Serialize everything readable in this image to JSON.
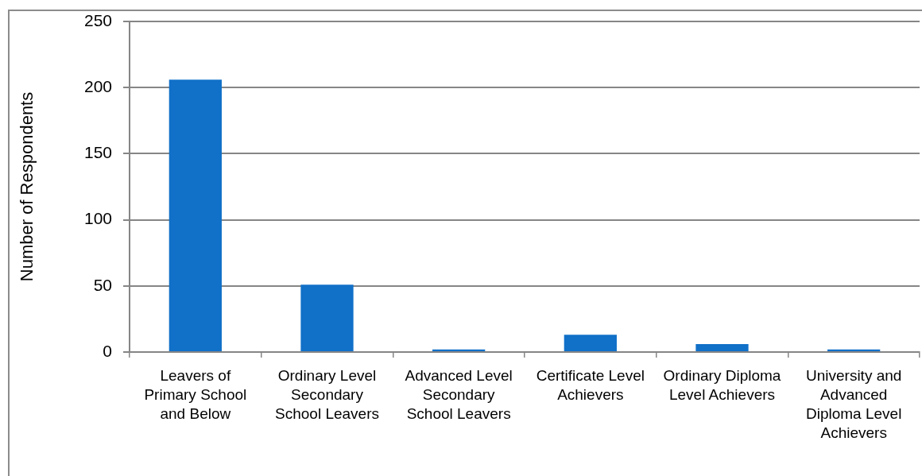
{
  "chart_data": {
    "type": "bar",
    "ylabel": "Number of Respondents",
    "categories": [
      "Leavers of Primary School and Below",
      "Ordinary Level Secondary School Leavers",
      "Advanced Level Secondary School Leavers",
      "Certificate Level Achievers",
      "Ordinary Diploma Level Achievers",
      "University and Advanced Diploma Level Achievers"
    ],
    "values": [
      206,
      51,
      2,
      13,
      6,
      2
    ],
    "color": "#1170c8",
    "ylim": [
      0,
      250
    ],
    "yticks": [
      0,
      50,
      100,
      150,
      200,
      250
    ],
    "grid": "y"
  }
}
